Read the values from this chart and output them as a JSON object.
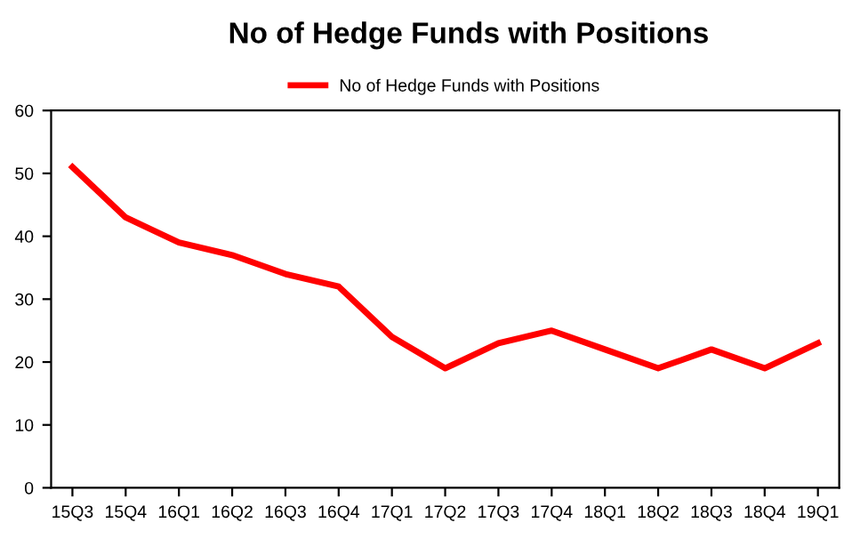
{
  "chart_data": {
    "type": "line",
    "title": "No of Hedge Funds with Positions",
    "categories": [
      "15Q3",
      "15Q4",
      "16Q1",
      "16Q2",
      "16Q3",
      "16Q4",
      "17Q1",
      "17Q2",
      "17Q3",
      "17Q4",
      "18Q1",
      "18Q2",
      "18Q3",
      "18Q4",
      "19Q1"
    ],
    "series": [
      {
        "name": "No of Hedge Funds with Positions",
        "color": "#ff0000",
        "values": [
          51,
          43,
          39,
          37,
          34,
          32,
          24,
          19,
          23,
          25,
          22,
          19,
          22,
          19,
          23
        ]
      }
    ],
    "ylim": [
      0,
      60
    ],
    "yticks": [
      0,
      10,
      20,
      30,
      40,
      50,
      60
    ],
    "legend": "top",
    "marker": "none",
    "line_style": "solid",
    "grid": false
  }
}
